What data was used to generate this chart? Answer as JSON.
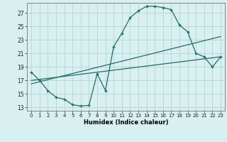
{
  "xlabel": "Humidex (Indice chaleur)",
  "ylabel": "",
  "bg_color": "#d8f0ef",
  "grid_color": "#b5d5d5",
  "line_color": "#236b6b",
  "marker": "+",
  "x_ticks": [
    0,
    1,
    2,
    3,
    4,
    5,
    6,
    7,
    8,
    9,
    10,
    11,
    12,
    13,
    14,
    15,
    16,
    17,
    18,
    19,
    20,
    21,
    22,
    23
  ],
  "y_ticks": [
    13,
    15,
    17,
    19,
    21,
    23,
    25,
    27
  ],
  "xlim": [
    -0.5,
    23.5
  ],
  "ylim": [
    12.5,
    28.5
  ],
  "line1_x": [
    0,
    1,
    2,
    3,
    4,
    5,
    6,
    7,
    8,
    9,
    10,
    11,
    12,
    13,
    14,
    15,
    16,
    17,
    18,
    19,
    20,
    21,
    22,
    23
  ],
  "line1_y": [
    18.2,
    17.0,
    15.5,
    14.5,
    14.2,
    13.4,
    13.2,
    13.3,
    18.0,
    15.5,
    22.0,
    24.0,
    26.3,
    27.3,
    28.0,
    28.0,
    27.8,
    27.5,
    25.2,
    24.2,
    21.0,
    20.5,
    19.0,
    20.5
  ],
  "line2_x": [
    0,
    23
  ],
  "line2_y": [
    17.0,
    20.5
  ],
  "line3_x": [
    0,
    23
  ],
  "line3_y": [
    16.5,
    23.5
  ]
}
